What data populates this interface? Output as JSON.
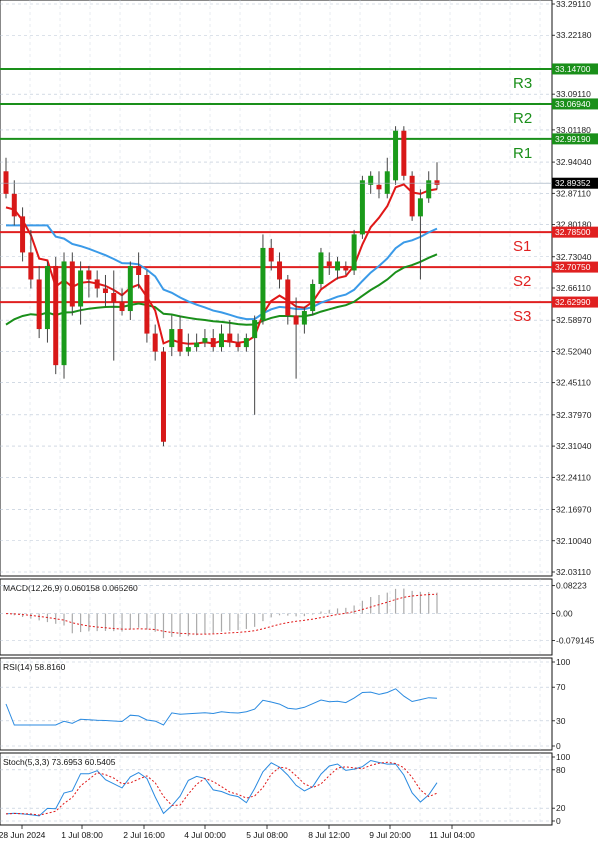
{
  "chart_data": [
    {
      "type": "candlestick",
      "panel": "price",
      "ylim": [
        32.0311,
        33.2911
      ],
      "yticks": [
        "33.29110",
        "33.22180",
        "33.14700",
        "33.09110",
        "33.06940",
        "33.01180",
        "32.99190",
        "32.94040",
        "32.89352",
        "32.87110",
        "32.80180",
        "32.78500",
        "32.73040",
        "32.70750",
        "32.66110",
        "32.62990",
        "32.58970",
        "32.52040",
        "32.45110",
        "32.37970",
        "32.31040",
        "32.24110",
        "32.16970",
        "32.10040",
        "32.03110"
      ],
      "x_labels": [
        "28 Jun 2024",
        "1 Jul 08:00",
        "2 Jul 16:00",
        "4 Jul 00:00",
        "5 Jul 08:00",
        "8 Jul 12:00",
        "9 Jul 20:00",
        "11 Jul 04:00"
      ],
      "current_price": "32.89352",
      "levels": [
        {
          "name": "R3",
          "value": 33.147,
          "label": "33.14700",
          "color": "#1a8f1a"
        },
        {
          "name": "R2",
          "value": 33.0694,
          "label": "33.06940",
          "color": "#1a8f1a"
        },
        {
          "name": "R1",
          "value": 32.9919,
          "label": "32.99190",
          "color": "#1a8f1a"
        },
        {
          "name": "S1",
          "value": 32.785,
          "label": "32.78500",
          "color": "#e02020"
        },
        {
          "name": "S2",
          "value": 32.7075,
          "label": "32.70750",
          "color": "#e02020"
        },
        {
          "name": "S3",
          "value": 32.6299,
          "label": "32.62990",
          "color": "#e02020"
        }
      ],
      "candles": [
        [
          32.92,
          32.95,
          32.86,
          32.87
        ],
        [
          32.87,
          32.9,
          32.8,
          32.82
        ],
        [
          32.82,
          32.84,
          32.72,
          32.74
        ],
        [
          32.74,
          32.79,
          32.66,
          32.68
        ],
        [
          32.68,
          32.71,
          32.55,
          32.57
        ],
        [
          32.57,
          32.72,
          32.54,
          32.71
        ],
        [
          32.71,
          32.73,
          32.47,
          32.49
        ],
        [
          32.49,
          32.74,
          32.46,
          32.72
        ],
        [
          32.72,
          32.74,
          32.6,
          32.62
        ],
        [
          32.62,
          32.72,
          32.58,
          32.7
        ],
        [
          32.7,
          32.71,
          32.64,
          32.68
        ],
        [
          32.68,
          32.7,
          32.64,
          32.66
        ],
        [
          32.66,
          32.69,
          32.62,
          32.65
        ],
        [
          32.65,
          32.7,
          32.5,
          32.63
        ],
        [
          32.63,
          32.66,
          32.6,
          32.61
        ],
        [
          32.61,
          32.72,
          32.59,
          32.71
        ],
        [
          32.71,
          32.74,
          32.66,
          32.69
        ],
        [
          32.69,
          32.7,
          32.54,
          32.56
        ],
        [
          32.56,
          32.58,
          32.5,
          32.52
        ],
        [
          32.52,
          32.53,
          32.31,
          32.32
        ],
        [
          32.53,
          32.6,
          32.51,
          32.57
        ],
        [
          32.57,
          32.6,
          32.51,
          32.52
        ],
        [
          32.52,
          32.56,
          32.51,
          32.53
        ],
        [
          32.53,
          32.56,
          32.52,
          32.54
        ],
        [
          32.54,
          32.57,
          32.53,
          32.55
        ],
        [
          32.55,
          32.57,
          32.52,
          32.53
        ],
        [
          32.53,
          32.58,
          32.52,
          32.56
        ],
        [
          32.56,
          32.59,
          32.53,
          32.54
        ],
        [
          32.54,
          32.56,
          32.52,
          32.53
        ],
        [
          32.53,
          32.56,
          32.52,
          32.55
        ],
        [
          32.55,
          32.6,
          32.38,
          32.59
        ],
        [
          32.59,
          32.78,
          32.58,
          32.75
        ],
        [
          32.75,
          32.77,
          32.7,
          32.72
        ],
        [
          32.72,
          32.74,
          32.66,
          32.68
        ],
        [
          32.68,
          32.69,
          32.58,
          32.6
        ],
        [
          32.6,
          32.64,
          32.46,
          32.58
        ],
        [
          32.58,
          32.62,
          32.56,
          32.61
        ],
        [
          32.61,
          32.68,
          32.6,
          32.67
        ],
        [
          32.67,
          32.75,
          32.66,
          32.74
        ],
        [
          32.72,
          32.74,
          32.69,
          32.71
        ],
        [
          32.7,
          32.73,
          32.68,
          32.72
        ],
        [
          32.71,
          32.72,
          32.69,
          32.7
        ],
        [
          32.7,
          32.79,
          32.69,
          32.78
        ],
        [
          32.78,
          32.91,
          32.77,
          32.9
        ],
        [
          32.89,
          32.92,
          32.87,
          32.91
        ],
        [
          32.89,
          32.92,
          32.86,
          32.88
        ],
        [
          32.87,
          32.95,
          32.86,
          32.92
        ],
        [
          32.9,
          33.02,
          32.89,
          33.01
        ],
        [
          33.01,
          33.02,
          32.9,
          32.91
        ],
        [
          32.91,
          32.92,
          32.81,
          32.82
        ],
        [
          32.82,
          32.88,
          32.68,
          32.86
        ],
        [
          32.86,
          32.92,
          32.85,
          32.9
        ],
        [
          32.9,
          32.94,
          32.88,
          32.89
        ]
      ],
      "ma_red_color": "#e01818",
      "ma_green_color": "#1a8f1a",
      "ma_blue_color": "#3a9ae8"
    },
    {
      "type": "bar+line",
      "panel": "macd",
      "title": "MACD(12,26,9) 0.060158 0.065260",
      "yticks": [
        "0.08223",
        "0.00",
        "-0.079145"
      ],
      "ylim": [
        -0.11,
        0.09
      ]
    },
    {
      "type": "line",
      "panel": "rsi",
      "title": "RSI(14) 58.8160",
      "yticks": [
        "100",
        "70",
        "30",
        "0"
      ],
      "ylim": [
        0,
        100
      ]
    },
    {
      "type": "line",
      "panel": "stoch",
      "title": "Stoch(5,3,3) 73.6953 60.5405",
      "yticks": [
        "100",
        "80",
        "20",
        "0"
      ],
      "ylim": [
        0,
        100
      ]
    }
  ]
}
